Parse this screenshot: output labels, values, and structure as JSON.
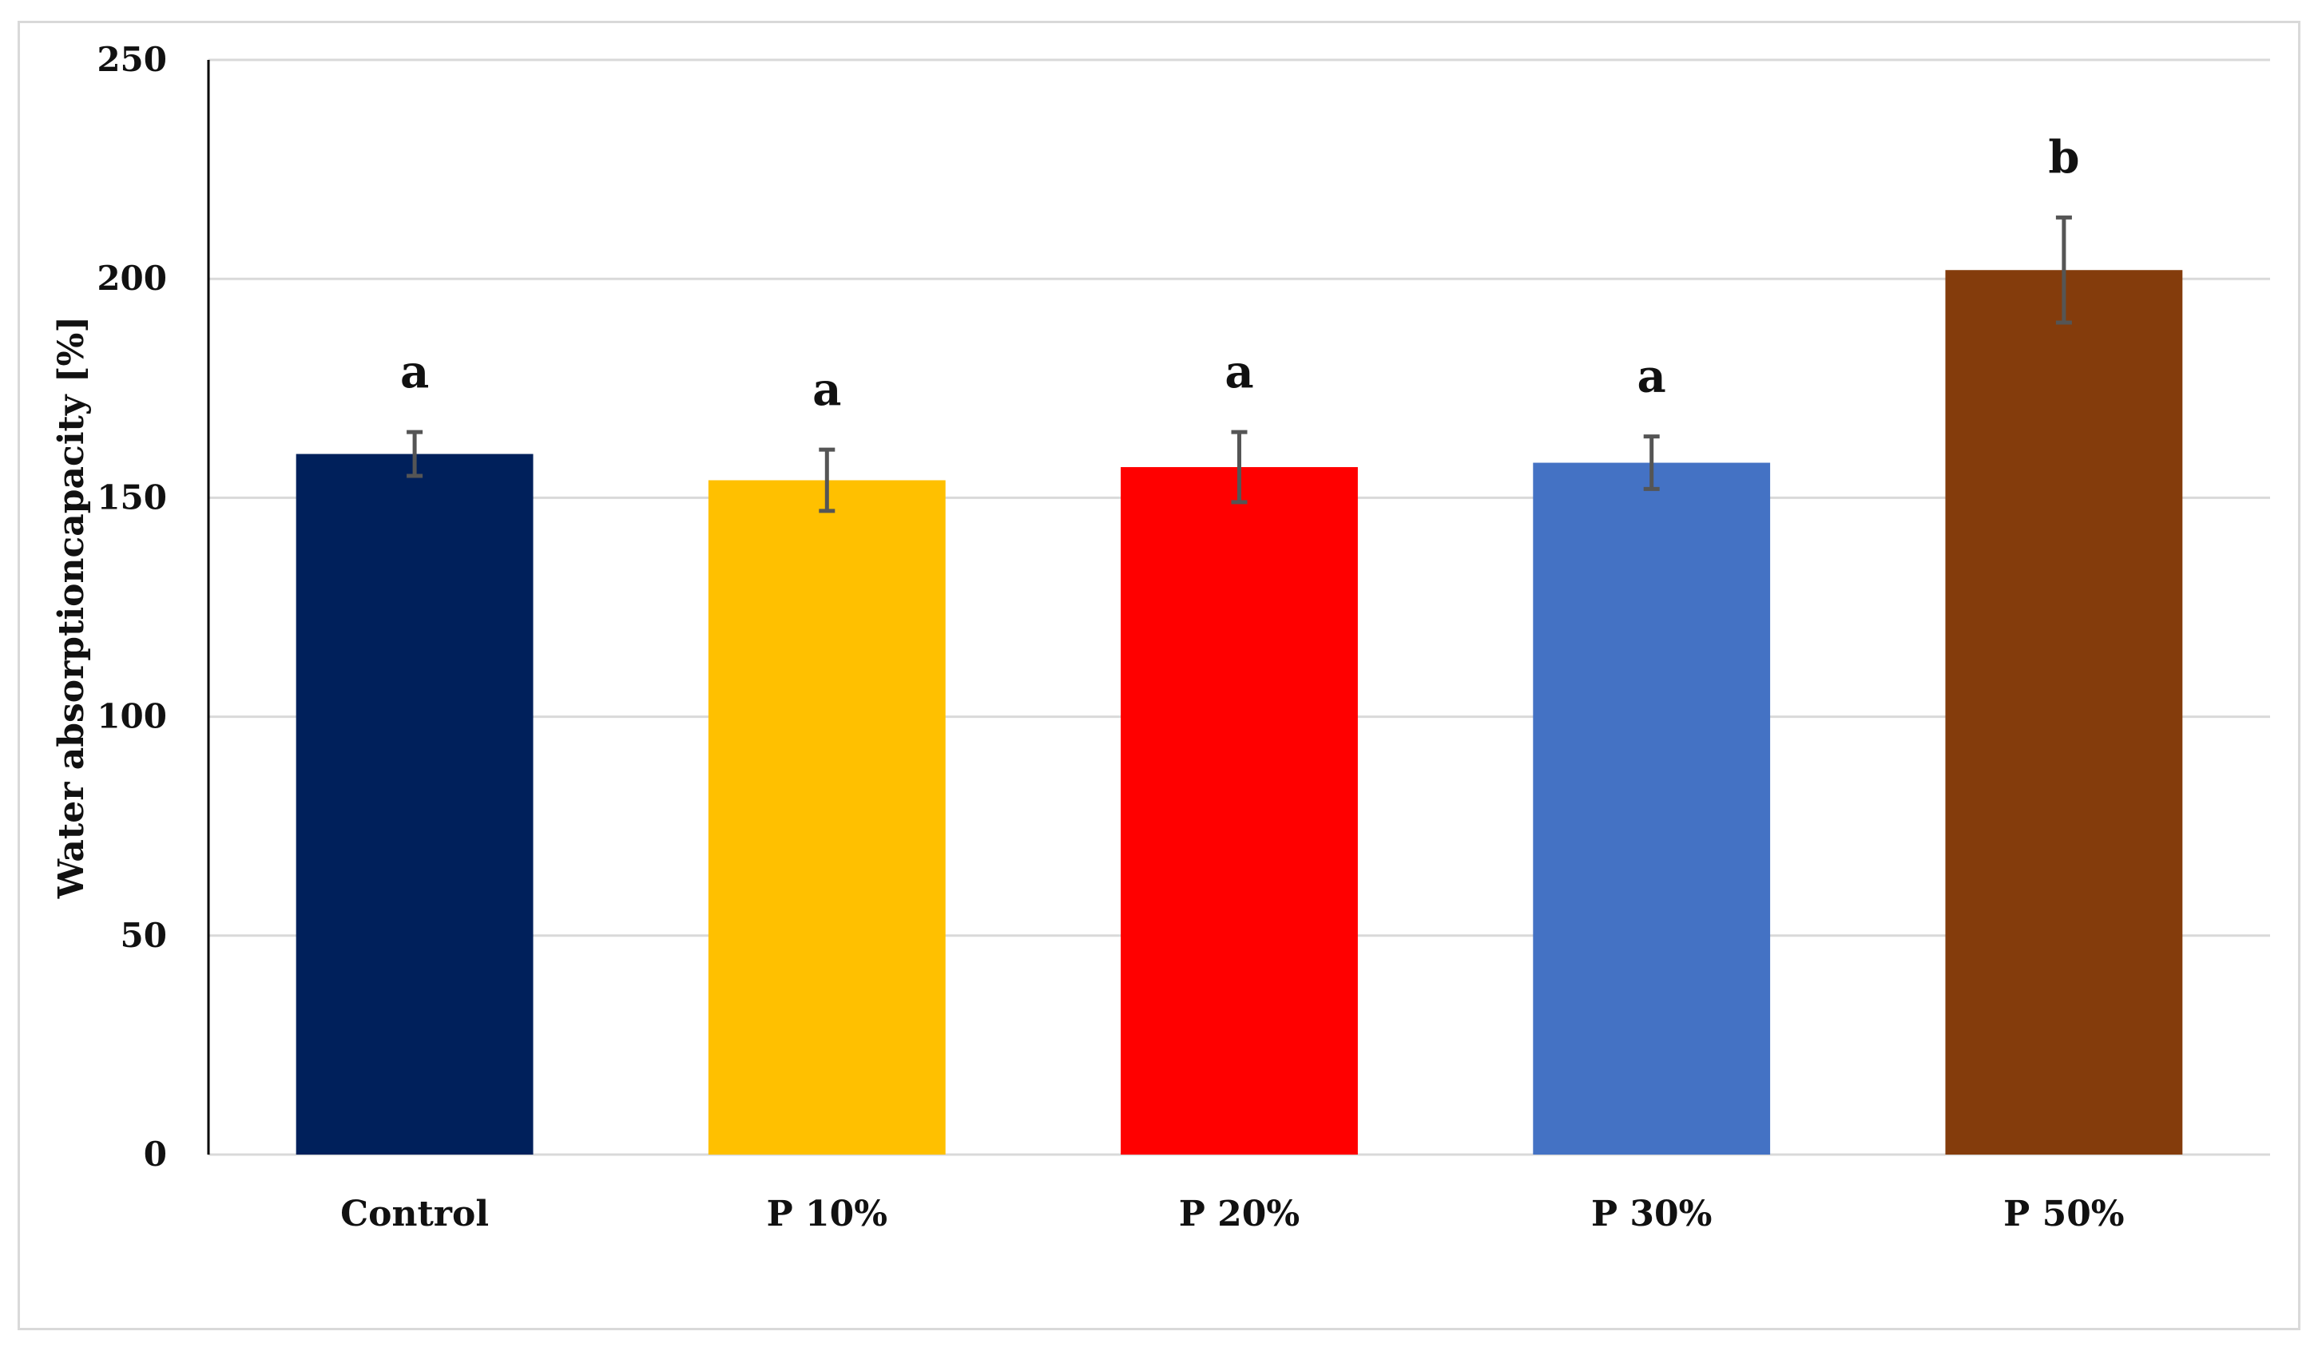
{
  "chart_data": {
    "type": "bar",
    "title": "",
    "xlabel": "",
    "ylabel": "Water absorptioncapacity [%]",
    "ylim": [
      0,
      250
    ],
    "yticks": [
      0,
      50,
      100,
      150,
      200,
      250
    ],
    "grid": true,
    "categories": [
      "Control",
      "P 10%",
      "P 20%",
      "P 30%",
      "P 50%"
    ],
    "values": [
      160,
      154,
      157,
      158,
      202
    ],
    "errors": [
      5,
      7,
      8,
      6,
      12
    ],
    "significance": [
      "a",
      "a",
      "a",
      "a",
      "b"
    ],
    "colors": [
      "#00205b",
      "#ffc000",
      "#ff0000",
      "#4472c4",
      "#843c0c"
    ],
    "error_color": "#555555",
    "grid_color": "#d9d9d9"
  }
}
